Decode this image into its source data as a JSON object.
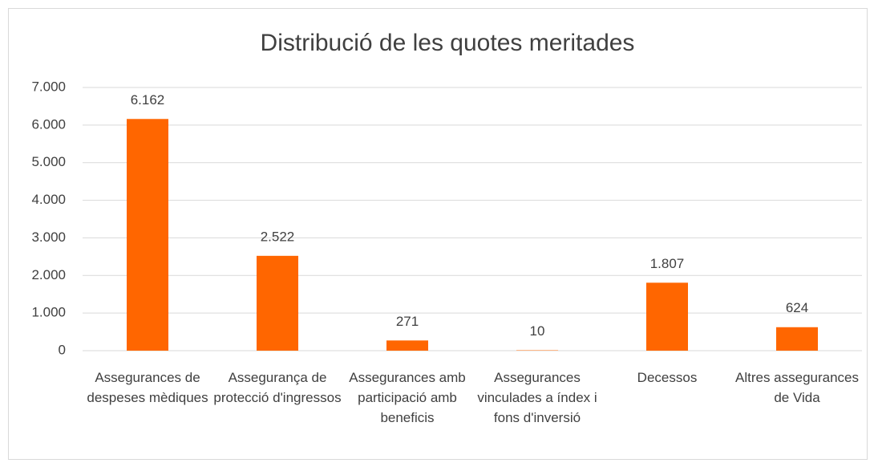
{
  "chart_data": {
    "type": "bar",
    "title": "Distribució de les quotes meritades",
    "categories": [
      "Assegurances de despeses mèdiques",
      "Assegurança de protecció d'ingressos",
      "Assegurances amb participació amb beneficis",
      "Assegurances vinculades a índex i fons d'inversió",
      "Decessos",
      "Altres assegurances de Vida"
    ],
    "values": [
      6162,
      2522,
      271,
      10,
      1807,
      624
    ],
    "value_labels": [
      "6.162",
      "2.522",
      "271",
      "10",
      "1.807",
      "624"
    ],
    "color": "#ff6600",
    "ylim": [
      0,
      7000
    ],
    "yticks": [
      0,
      {
        "value": 1000,
        "label": "1.000"
      },
      {
        "value": 2000,
        "label": "2.000"
      },
      {
        "value": 3000,
        "label": "3.000"
      },
      {
        "value": 4000,
        "label": "4.000"
      },
      {
        "value": 5000,
        "label": "5.000"
      },
      {
        "value": 6000,
        "label": "6.000"
      },
      {
        "value": 7000,
        "label": "7.000"
      }
    ],
    "grid": true
  }
}
